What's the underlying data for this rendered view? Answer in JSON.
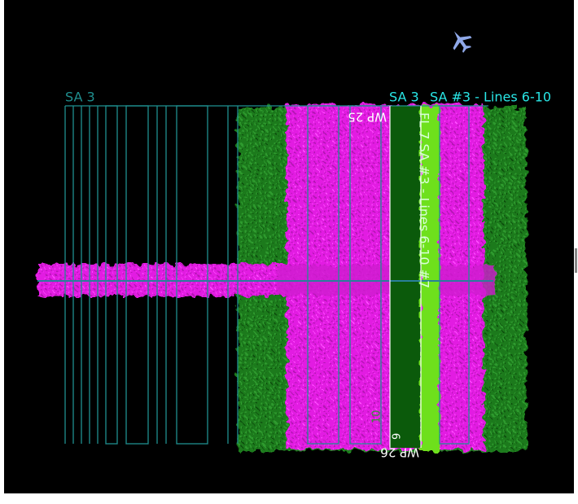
{
  "map": {
    "labels": {
      "sa_short": "SA 3",
      "sa_title": "SA #3 - Lines 6-10",
      "wp_top": "WP 25",
      "wp_bottom": "WP 26",
      "flight_line": "FL 7 SA #3 - Lines 6-10 #7",
      "line_10": "10",
      "line_9": "9"
    }
  }
}
